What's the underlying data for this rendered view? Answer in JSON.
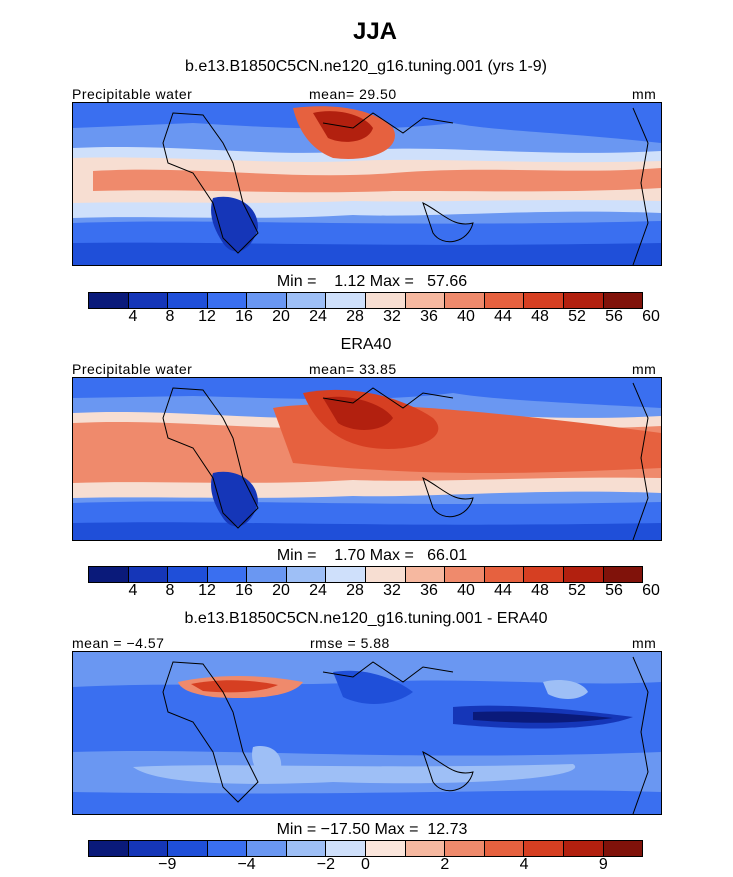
{
  "title": "JJA",
  "colors": {
    "abs_palette": [
      "#0a1a7a",
      "#1536b8",
      "#1f4fd9",
      "#3a6ff0",
      "#6a97f2",
      "#9ebff6",
      "#cfe0fb",
      "#f7ded2",
      "#f6b8a0",
      "#ef8a6c",
      "#e6613f",
      "#d63f22",
      "#b2200f",
      "#80120a"
    ],
    "diff_palette": [
      "#0a1a7a",
      "#1536b8",
      "#1f4fd9",
      "#3a6ff0",
      "#6a97f2",
      "#9ebff6",
      "#cfe0fb",
      "#fbe6dc",
      "#f6b8a0",
      "#ef8a6c",
      "#e6613f",
      "#d63f22",
      "#b2200f",
      "#80120a"
    ],
    "coastline": "#000000"
  },
  "panels": [
    {
      "subtitle": "b.e13.B1850C5CN.ne120_g16.tuning.001 (yrs 1-9)",
      "left_label": "Precipitable water",
      "center_label": "mean=  29.50",
      "right_label": "mm",
      "minmax": "Min =    1.12 Max =   57.66",
      "ticks": [
        "4",
        "8",
        "12",
        "16",
        "20",
        "24",
        "28",
        "32",
        "36",
        "40",
        "44",
        "48",
        "52",
        "56",
        "60"
      ]
    },
    {
      "subtitle": "ERA40",
      "left_label": "Precipitable water",
      "center_label": "mean=  33.85",
      "right_label": "mm",
      "minmax": "Min =    1.70 Max =   66.01",
      "ticks": [
        "4",
        "8",
        "12",
        "16",
        "20",
        "24",
        "28",
        "32",
        "36",
        "40",
        "44",
        "48",
        "52",
        "56",
        "60"
      ]
    },
    {
      "subtitle": "b.e13.B1850C5CN.ne120_g16.tuning.001 - ERA40",
      "left_label": "mean =  −4.57",
      "center_label": "rmse =   5.88",
      "right_label": "mm",
      "minmax": "Min = −17.50 Max =  12.73",
      "ticks": [
        "−9",
        "−4",
        "−2",
        "0",
        "2",
        "4",
        "9"
      ]
    }
  ],
  "chart_data": [
    {
      "type": "heatmap",
      "title": "JJA",
      "subtitle": "b.e13.B1850C5CN.ne120_g16.tuning.001 (yrs 1-9)",
      "variable": "Precipitable water",
      "units": "mm",
      "mean": 29.5,
      "min": 1.12,
      "max": 57.66,
      "contour_levels": [
        4,
        8,
        12,
        16,
        20,
        24,
        28,
        32,
        36,
        40,
        44,
        48,
        52,
        56,
        60
      ]
    },
    {
      "type": "heatmap",
      "subtitle": "ERA40",
      "variable": "Precipitable water",
      "units": "mm",
      "mean": 33.85,
      "min": 1.7,
      "max": 66.01,
      "contour_levels": [
        4,
        8,
        12,
        16,
        20,
        24,
        28,
        32,
        36,
        40,
        44,
        48,
        52,
        56,
        60
      ]
    },
    {
      "type": "heatmap",
      "subtitle": "b.e13.B1850C5CN.ne120_g16.tuning.001 - ERA40",
      "units": "mm",
      "mean": -4.57,
      "rmse": 5.88,
      "min": -17.5,
      "max": 12.73,
      "contour_labels": [
        -9,
        -4,
        -2,
        0,
        2,
        4,
        9
      ]
    }
  ]
}
